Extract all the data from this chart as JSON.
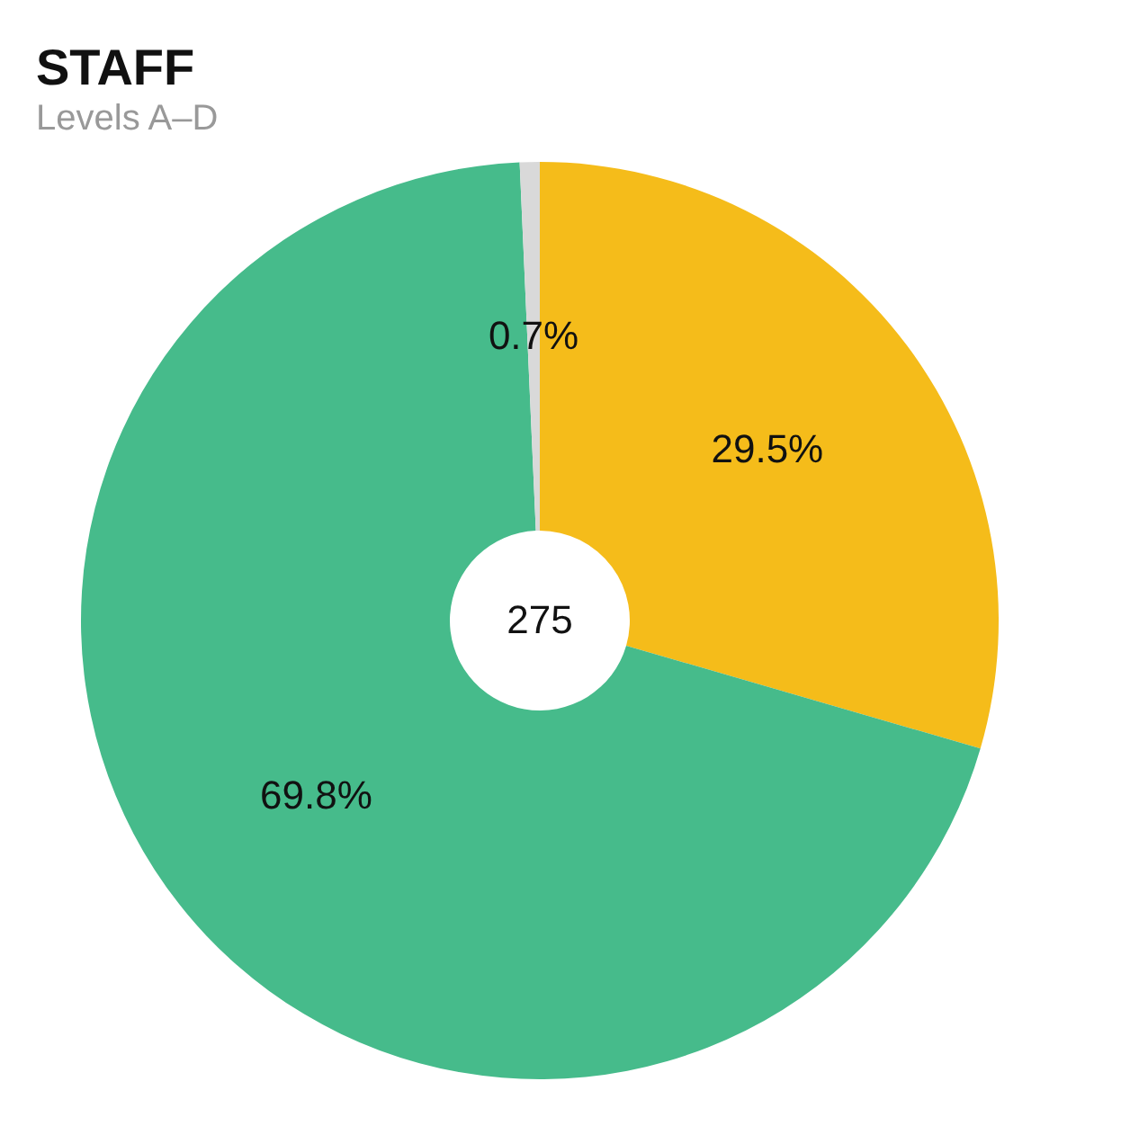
{
  "chart_data": {
    "type": "donut",
    "title": "STAFF",
    "subtitle": "Levels A–D",
    "categories": [
      null,
      null,
      null
    ],
    "values": [
      29.5,
      69.8,
      0.7
    ],
    "colors": [
      "#f5bc1a",
      "#46bb8b",
      "#d9d9d9"
    ],
    "value_labels": [
      "29.5%",
      "69.8%",
      "0.7%"
    ],
    "annotations": [
      "275"
    ],
    "legend": false
  }
}
